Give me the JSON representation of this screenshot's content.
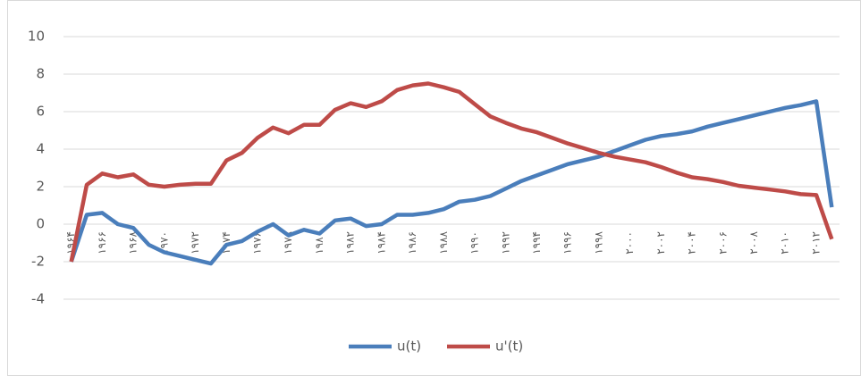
{
  "chart_data": {
    "type": "line",
    "categories": [
      "۱۹۶۴",
      null,
      "۱۹۶۶",
      null,
      "۱۹۶۸",
      null,
      "۱۹۷۰",
      null,
      "۱۹۷۲",
      null,
      "۱۹۷۴",
      null,
      "۱۹۷۶",
      null,
      "۱۹۷۸",
      null,
      "۱۹۸۰",
      null,
      "۱۹۸۲",
      null,
      "۱۹۸۴",
      null,
      "۱۹۸۶",
      null,
      "۱۹۸۸",
      null,
      "۱۹۹۰",
      null,
      "۱۹۹۲",
      null,
      "۱۹۹۴",
      null,
      "۱۹۹۶",
      null,
      "۱۹۹۸",
      null,
      "۲۰۰۰",
      null,
      "۲۰۰۲",
      null,
      "۲۰۰۴",
      null,
      "۲۰۰۶",
      null,
      "۲۰۰۸",
      null,
      "۲۰۱۰",
      null,
      "۲۰۱۲",
      null
    ],
    "series": [
      {
        "name": "u(t)",
        "color": "#4a7ebb",
        "values": [
          -2,
          0.5,
          0.6,
          0,
          -0.2,
          -1.1,
          -1.5,
          -1.7,
          -1.9,
          -2.1,
          -1.1,
          -0.9,
          -0.4,
          0,
          -0.6,
          -0.3,
          -0.5,
          0.2,
          0.3,
          -0.1,
          0,
          0.5,
          0.5,
          0.6,
          0.8,
          1.2,
          1.3,
          1.5,
          1.9,
          2.3,
          2.6,
          2.9,
          3.2,
          3.4,
          3.6,
          3.9,
          4.2,
          4.5,
          4.7,
          4.8,
          4.95,
          5.2,
          5.4,
          5.6,
          5.8,
          6.0,
          6.2,
          6.35,
          6.55,
          0.9
        ]
      },
      {
        "name": "u'(t)",
        "color": "#be4b48",
        "values": [
          -2,
          2.1,
          2.7,
          2.5,
          2.65,
          2.1,
          2.0,
          2.1,
          2.15,
          2.15,
          3.4,
          3.8,
          4.6,
          5.15,
          4.85,
          5.3,
          5.3,
          6.1,
          6.45,
          6.25,
          6.55,
          7.15,
          7.4,
          7.5,
          7.3,
          7.05,
          6.4,
          5.75,
          5.4,
          5.1,
          4.9,
          4.6,
          4.3,
          4.05,
          3.8,
          3.6,
          3.45,
          3.3,
          3.05,
          2.75,
          2.5,
          2.4,
          2.25,
          2.05,
          1.95,
          1.85,
          1.75,
          1.6,
          1.55,
          -0.8
        ]
      }
    ],
    "ylim": [
      -4,
      10
    ],
    "yticks": [
      -4,
      -2,
      0,
      2,
      4,
      6,
      8,
      10
    ],
    "grid": true,
    "legend": "bottom"
  }
}
